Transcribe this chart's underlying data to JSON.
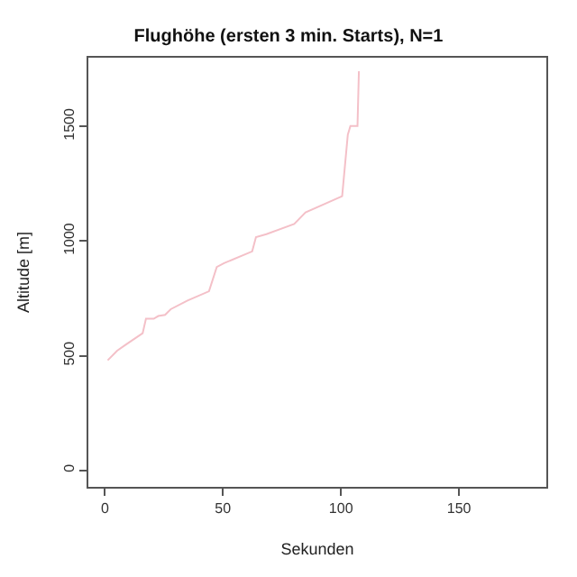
{
  "chart_data": {
    "type": "line",
    "title": "Flughöhe (ersten 3 min. Starts), N=1",
    "xlabel": "Sekunden",
    "ylabel": "Altitude [m]",
    "x": [
      1.2,
      5.2,
      8.8,
      16,
      17.4,
      20.7,
      22.6,
      25.5,
      27.9,
      35,
      44.1,
      47.4,
      50.5,
      62.4,
      64,
      68.4,
      80.2,
      85,
      100.5,
      102.9,
      104,
      107,
      107.6
    ],
    "series": [
      {
        "color": "#f4c0c8",
        "values": [
          480,
          522,
          548,
          598,
          661,
          661,
          673,
          678,
          703,
          741,
          781,
          887,
          904,
          955,
          1017,
          1030,
          1075,
          1125,
          1196,
          1464,
          1502,
          1502,
          1741
        ]
      }
    ],
    "xlim": [
      -7,
      187
    ],
    "xticks": [
      0,
      50,
      100,
      150
    ],
    "ylim": [
      -72,
      1800
    ],
    "yticks": [
      0,
      500,
      1000,
      1500
    ],
    "legend": false,
    "marker": "none",
    "line_style": "solid"
  }
}
